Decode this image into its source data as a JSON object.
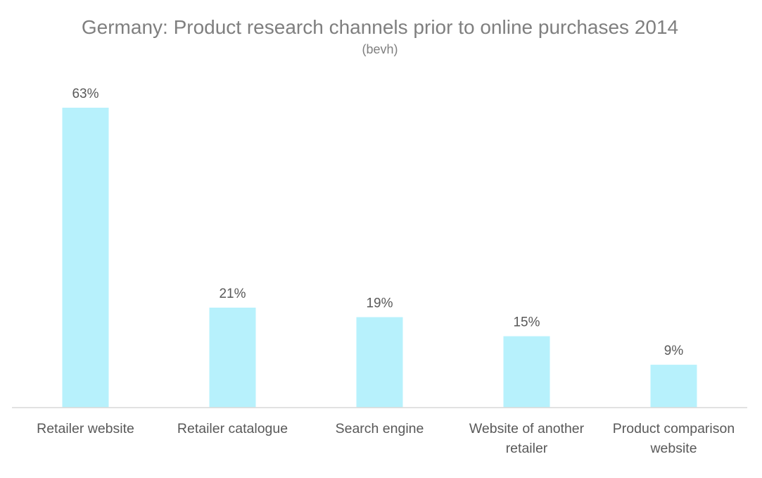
{
  "chart_data": {
    "type": "bar",
    "title": "Germany: Product research channels prior to online purchases 2014",
    "subtitle": "(bevh)",
    "categories": [
      [
        "Retailer website"
      ],
      [
        "Retailer catalogue"
      ],
      [
        "Search engine"
      ],
      [
        "Website of another",
        "retailer"
      ],
      [
        "Product comparison",
        "website"
      ]
    ],
    "values": [
      63,
      21,
      19,
      15,
      9
    ],
    "data_labels": [
      "63%",
      "21%",
      "19%",
      "15%",
      "9%"
    ],
    "unit": "%",
    "ylim": [
      0,
      70
    ],
    "grid": false,
    "legend": "none",
    "bar_color": "#b7f1fc",
    "axis_color": "#d9d9d9",
    "text_color": "#595959",
    "title_color": "#7f7f7f"
  }
}
